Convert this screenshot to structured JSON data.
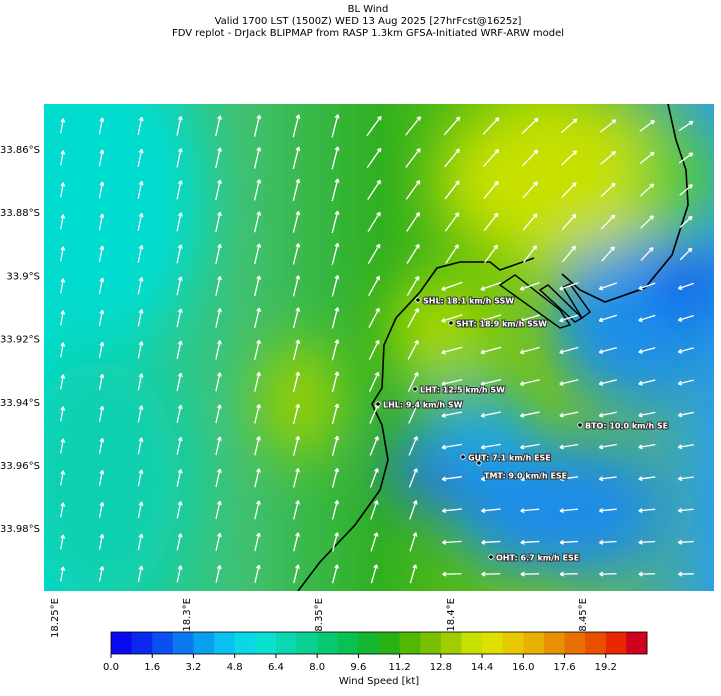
{
  "header": {
    "title": "BL Wind",
    "lines": [
      "Valid 1700 LST (1500Z) WED 13 Aug 2025 [27hrFcst@1625z]",
      "FDV replot - DrJack BLIPMAP from RASP 1.3km GFSA-Initiated WRF-ARW model"
    ]
  },
  "map": {
    "lat_labels": [
      "33.86°S",
      "33.88°S",
      "33.9°S",
      "33.92°S",
      "33.94°S",
      "33.96°S",
      "33.98°S"
    ],
    "lon_labels": [
      "18.25°E",
      "18.3°E",
      "18.35°E",
      "18.4°E",
      "18.45°E"
    ],
    "stations": [
      "SHL: 18.1 km/h SSW",
      "SHT: 18.9 km/h SSW",
      "LHT: 12.5 km/h SW",
      "LHL: 9.4 km/h SW",
      "BTO: 10.0 km/h SE",
      "GUT: 7.1 km/h ESE",
      "TMT: 9.0 km/h ESE",
      "OHT: 6.7 km/h ESE"
    ]
  },
  "colorbar": {
    "label": "Wind Speed [kt]",
    "lim": [
      0,
      20.8
    ],
    "ticks": [
      {
        "value": 0,
        "label": "0.0"
      },
      {
        "value": 1.6,
        "label": "1.6"
      },
      {
        "value": 3.2,
        "label": "3.2"
      },
      {
        "value": 4.8,
        "label": "4.8"
      },
      {
        "value": 6.4,
        "label": "6.4"
      },
      {
        "value": 8,
        "label": "8.0"
      },
      {
        "value": 9.6,
        "label": "9.6"
      },
      {
        "value": 11.2,
        "label": "11.2"
      },
      {
        "value": 12.8,
        "label": "12.8"
      },
      {
        "value": 14.4,
        "label": "14.4"
      },
      {
        "value": 16,
        "label": "16.0"
      },
      {
        "value": 17.6,
        "label": "17.6"
      },
      {
        "value": 19.2,
        "label": "19.2"
      }
    ],
    "colors": [
      "#0a0af0",
      "#0a28f0",
      "#0a50f0",
      "#0a78f0",
      "#0aa0f0",
      "#0ac0f0",
      "#0ad8e8",
      "#0ae0d0",
      "#0ad8b0",
      "#0ad090",
      "#0ac870",
      "#0ac050",
      "#14b830",
      "#28b014",
      "#50b800",
      "#78c000",
      "#a0cc00",
      "#c8e000",
      "#e0e000",
      "#e8c800",
      "#e8b000",
      "#e89000",
      "#e87000",
      "#e85000",
      "#e82800",
      "#d00020"
    ]
  }
}
